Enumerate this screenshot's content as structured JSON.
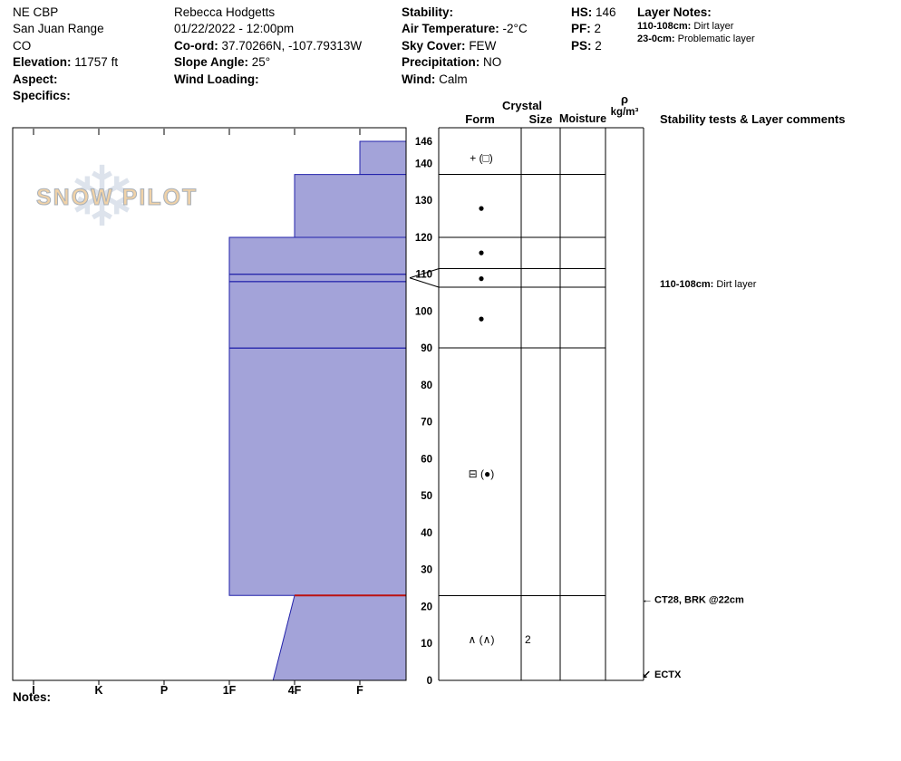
{
  "header": {
    "location": {
      "l1": "NE CBP",
      "l2": "San Juan Range",
      "l3": "CO",
      "elevation_label": "Elevation:",
      "elevation": "11757 ft",
      "aspect_label": "Aspect:",
      "aspect": "",
      "specifics_label": "Specifics:",
      "specifics": ""
    },
    "obs": {
      "observer": "Rebecca Hodgetts",
      "datetime": "01/22/2022 - 12:00pm",
      "coord_label": "Co-ord:",
      "coord": "37.70266N, -107.79313W",
      "slope_label": "Slope Angle:",
      "slope": "25°",
      "windload_label": "Wind Loading:",
      "windload": ""
    },
    "wx": {
      "stability_label": "Stability:",
      "stability": "",
      "airtemp_label": "Air Temperature:",
      "airtemp": "-2°C",
      "sky_label": "Sky Cover:",
      "sky": "FEW",
      "precip_label": "Precipitation:",
      "precip": "NO",
      "wind_label": "Wind:",
      "wind": "Calm"
    },
    "pit": {
      "hs_label": "HS:",
      "hs": "146",
      "pf_label": "PF:",
      "pf": "2",
      "ps_label": "PS:",
      "ps": "2"
    },
    "layer_notes": {
      "title": "Layer Notes:",
      "notes": [
        {
          "label": "110-108cm:",
          "text": "Dirt layer"
        },
        {
          "label": "23-0cm:",
          "text": "Problematic layer"
        }
      ]
    }
  },
  "table_headers": {
    "crystal": "Crystal",
    "form": "Form",
    "size": "Size",
    "moisture": "Moisture",
    "rho": "ρ",
    "rho_units": "kg/m³",
    "comments": "Stability tests & Layer comments"
  },
  "logo": {
    "text": "SNOW PILOT"
  },
  "notes_label": "Notes:",
  "chart_data": {
    "type": "snow-profile-bar",
    "depth_axis": {
      "unit": "cm",
      "ticks": [
        0,
        10,
        20,
        30,
        40,
        50,
        60,
        70,
        80,
        90,
        100,
        110,
        120,
        130,
        140
      ],
      "total_depth": 146
    },
    "hardness_axis": {
      "categories": [
        "I",
        "K",
        "P",
        "1F",
        "4F",
        "F"
      ]
    },
    "layers": [
      {
        "top_cm": 146,
        "bottom_cm": 137,
        "hardness_top": "F",
        "hardness_bottom": "F"
      },
      {
        "top_cm": 137,
        "bottom_cm": 120,
        "hardness_top": "4F",
        "hardness_bottom": "4F"
      },
      {
        "top_cm": 120,
        "bottom_cm": 110,
        "hardness_top": "1F",
        "hardness_bottom": "1F"
      },
      {
        "top_cm": 110,
        "bottom_cm": 108,
        "hardness_top": "1F",
        "hardness_bottom": "1F"
      },
      {
        "top_cm": 108,
        "bottom_cm": 90,
        "hardness_top": "1F",
        "hardness_bottom": "1F"
      },
      {
        "top_cm": 90,
        "bottom_cm": 23,
        "hardness_top": "1F",
        "hardness_bottom": "1F"
      },
      {
        "top_cm": 23,
        "bottom_cm": 0,
        "hardness_top": "4F",
        "hardness_bottom": "4F-"
      }
    ],
    "marker_lines": [
      {
        "cm": 110,
        "hardness": "1F",
        "color": "#2222aa",
        "width": 1
      },
      {
        "cm": 108,
        "hardness": "1F",
        "color": "#2222aa",
        "width": 1
      },
      {
        "cm": 90,
        "hardness": "1F",
        "color": "#2222aa",
        "width": 1
      },
      {
        "cm": 23,
        "hardness": "4F",
        "color": "#bb1111",
        "width": 2
      }
    ],
    "grains": [
      {
        "cm": 141.5,
        "form": "+ (□)",
        "size": "",
        "moisture": ""
      },
      {
        "cm": 128,
        "form": "●",
        "size": "",
        "moisture": ""
      },
      {
        "cm": 116,
        "form": "●",
        "size": "",
        "moisture": ""
      },
      {
        "cm": 109,
        "form": "●",
        "size": "",
        "moisture": ""
      },
      {
        "cm": 98,
        "form": "●",
        "size": "",
        "moisture": ""
      },
      {
        "cm": 56,
        "form": "⊟ (●)",
        "size": "",
        "moisture": ""
      },
      {
        "cm": 11,
        "form": "∧ (∧)",
        "size": "2",
        "moisture": ""
      }
    ],
    "table_row_lines_cm": [
      137,
      120,
      111.5,
      106.5,
      90,
      23
    ],
    "expanded_layer": {
      "chart_cm": [
        110,
        108
      ],
      "table_cm": [
        111.5,
        106.5
      ]
    },
    "comments": [
      {
        "cm": 107.5,
        "label": "110-108cm:",
        "text": "Dirt layer",
        "arrow": ""
      },
      {
        "cm": 22,
        "label": "",
        "text": "CT28, BRK @22cm",
        "arrow": "←"
      },
      {
        "cm": 1.7,
        "label": "",
        "text": "ECTX",
        "arrow": "↙"
      }
    ],
    "colors": {
      "bar_fill": "#a3a3d9",
      "bar_border": "#2222aa",
      "frame": "#000000"
    }
  }
}
